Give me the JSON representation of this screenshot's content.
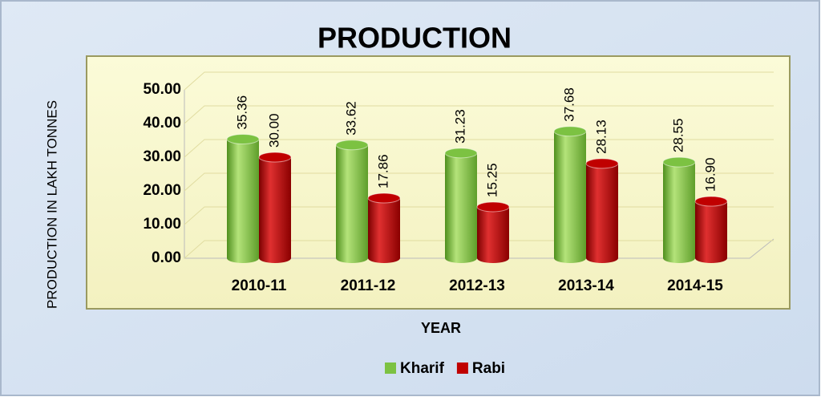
{
  "chart_data": {
    "type": "bar",
    "title": "PRODUCTION",
    "x_label": "YEAR",
    "y_label": "PRODUCTION IN LAKH TONNES",
    "categories": [
      "2010-11",
      "2011-12",
      "2012-13",
      "2013-14",
      "2014-15"
    ],
    "series": [
      {
        "name": "Kharif",
        "color": "#7cc242",
        "values": [
          35.36,
          33.62,
          31.23,
          37.68,
          28.55
        ],
        "value_labels": [
          "35.36",
          "33.62",
          "31.23",
          "37.68",
          "28.55"
        ]
      },
      {
        "name": "Rabi",
        "color": "#c00000",
        "values": [
          30,
          17.86,
          15.25,
          28.13,
          16.9
        ],
        "value_labels": [
          "30.00",
          "17.86",
          "15.25",
          "28.13",
          "16.90"
        ]
      }
    ],
    "ylim": [
      0,
      50
    ],
    "yticks": [
      {
        "value": 0,
        "label": "0.00"
      },
      {
        "value": 10,
        "label": "10.00"
      },
      {
        "value": 20,
        "label": "20.00"
      },
      {
        "value": 30,
        "label": "30.00"
      },
      {
        "value": 40,
        "label": "40.00"
      },
      {
        "value": 50,
        "label": "50.00"
      }
    ],
    "grid": true,
    "legend": "bottom"
  }
}
